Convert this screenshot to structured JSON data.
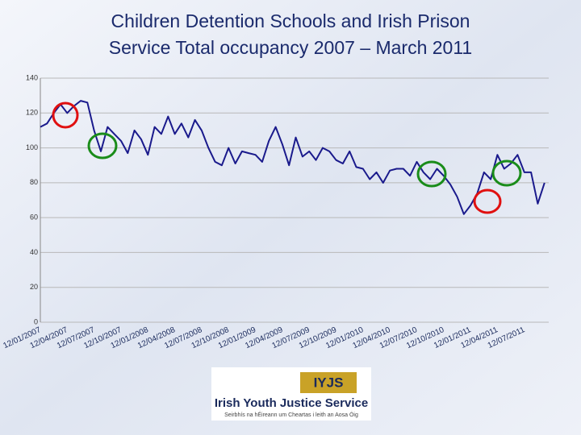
{
  "chart_data": {
    "type": "line",
    "title": [
      "Children Detention Schools and Irish Prison",
      "Service Total occupancy 2007 – March 2011"
    ],
    "categories": [
      "12/01/2007",
      null,
      null,
      null,
      "12/04/2007",
      null,
      null,
      null,
      "12/07/2007",
      null,
      null,
      null,
      "12/10/2007",
      null,
      null,
      null,
      "12/01/2008",
      null,
      null,
      null,
      "12/04/2008",
      null,
      null,
      null,
      "12/07/2008",
      null,
      null,
      null,
      "12/10/2008",
      null,
      null,
      null,
      "12/01/2009",
      null,
      null,
      null,
      "12/04/2009",
      null,
      null,
      null,
      "12/07/2009",
      null,
      null,
      null,
      "12/10/2009",
      null,
      null,
      null,
      "12/01/2010",
      null,
      null,
      null,
      "12/04/2010",
      null,
      null,
      null,
      "12/07/2010",
      null,
      null,
      null,
      "12/10/2010",
      null,
      null,
      null,
      "12/01/2011",
      null,
      null,
      null,
      "12/04/2011",
      null,
      null,
      null,
      "12/07/2011",
      null,
      null,
      null
    ],
    "values": [
      112,
      114,
      120,
      125,
      120,
      124,
      127,
      126,
      110,
      98,
      112,
      108,
      104,
      97,
      110,
      105,
      96,
      112,
      108,
      118,
      108,
      114,
      106,
      116,
      110,
      100,
      92,
      90,
      100,
      91,
      98,
      97,
      96,
      92,
      104,
      112,
      102,
      90,
      106,
      95,
      98,
      93,
      100,
      98,
      93,
      91,
      98,
      89,
      88,
      82,
      86,
      80,
      87,
      88,
      88,
      84,
      92,
      86,
      82,
      88,
      84,
      79,
      72,
      62,
      67,
      74,
      86,
      82,
      96,
      88,
      91,
      96,
      86,
      86,
      68,
      80
    ],
    "color": "#1a1a8c",
    "ylim": [
      0,
      140
    ],
    "yticks": [
      0,
      20,
      40,
      60,
      80,
      100,
      120,
      140
    ],
    "grid": true
  },
  "logo": {
    "mark": "IYJS",
    "name": "Irish Youth Justice Service",
    "subtitle": "Seirbhís na hÉireann um Cheartas i leith an Aosa Óig"
  }
}
